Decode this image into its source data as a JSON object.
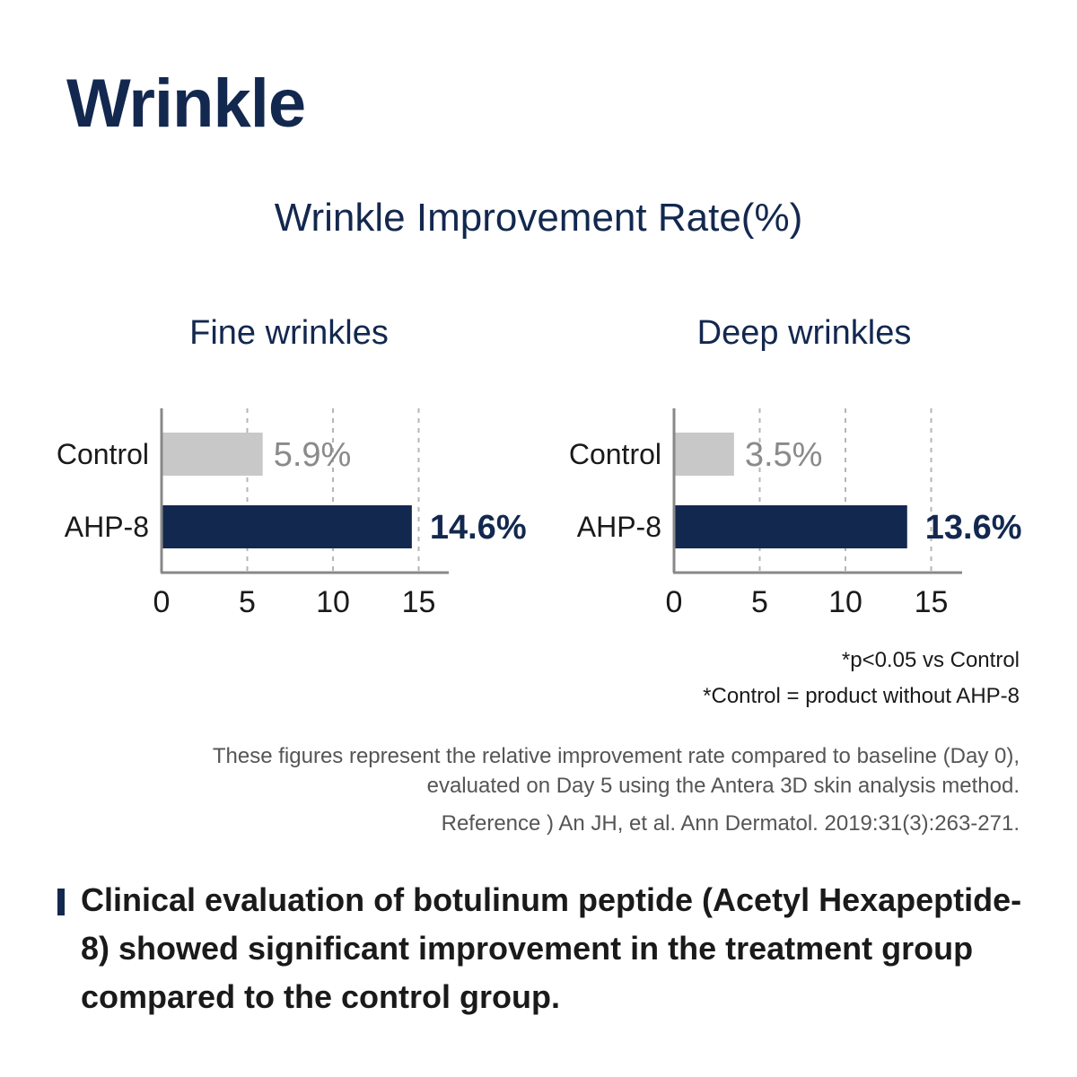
{
  "page_title": "Wrinkle",
  "chart_heading": "Wrinkle Improvement Rate(%)",
  "colors": {
    "control": "#c8c8c8",
    "ahp": "#13284f",
    "axis": "#888888"
  },
  "chart_data": [
    {
      "type": "bar",
      "orientation": "horizontal",
      "title": "Fine wrinkles",
      "categories": [
        "Control",
        "AHP-8"
      ],
      "values": [
        5.9,
        14.6
      ],
      "data_labels": [
        "5.9%",
        "14.6%"
      ],
      "xlim": [
        0,
        17
      ],
      "xticks": [
        0,
        5,
        10,
        15
      ],
      "grid": "vertical dashed"
    },
    {
      "type": "bar",
      "orientation": "horizontal",
      "title": "Deep wrinkles",
      "categories": [
        "Control",
        "AHP-8"
      ],
      "values": [
        3.5,
        13.6
      ],
      "data_labels": [
        "3.5%",
        "13.6%"
      ],
      "xlim": [
        0,
        17
      ],
      "xticks": [
        0,
        5,
        10,
        15
      ],
      "grid": "vertical dashed"
    }
  ],
  "notes": {
    "significance": "*p<0.05 vs Control",
    "control_definition": "*Control = product without AHP-8"
  },
  "description": {
    "line1": "These figures represent the relative improvement rate compared to baseline (Day 0),",
    "line2": "evaluated on Day 5 using the Antera 3D skin analysis method."
  },
  "reference": "Reference ) An JH, et al. Ann Dermatol. 2019:31(3):263-271.",
  "conclusion": "Clinical evaluation of botulinum peptide (Acetyl Hexapeptide-8) showed significant improvement in the treatment group compared to the control group."
}
